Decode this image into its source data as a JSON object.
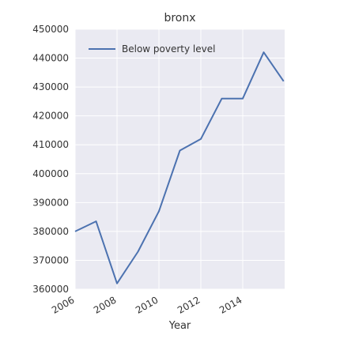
{
  "chart_data": {
    "type": "line",
    "title": "bronx",
    "xlabel": "Year",
    "ylabel": "",
    "x": [
      2006,
      2007,
      2008,
      2009,
      2010,
      2011,
      2012,
      2013,
      2014,
      2015
    ],
    "xlim": [
      2006,
      2015
    ],
    "ylim": [
      360000,
      450000
    ],
    "xticks": [
      2006,
      2008,
      2010,
      2012,
      2014
    ],
    "xtick_labels": [
      "2006",
      "2008",
      "2010",
      "2012",
      "2014"
    ],
    "yticks": [
      360000,
      370000,
      380000,
      390000,
      400000,
      410000,
      420000,
      430000,
      440000,
      450000
    ],
    "ytick_labels": [
      "360000",
      "370000",
      "380000",
      "390000",
      "400000",
      "410000",
      "420000",
      "430000",
      "440000",
      "450000"
    ],
    "series": [
      {
        "name": "Below poverty level",
        "color": "#4c72b0",
        "values": [
          380000,
          383500,
          362000,
          373000,
          387000,
          408000,
          412000,
          426000,
          426000,
          442000
        ]
      }
    ],
    "extra_point": {
      "x": 2015.95,
      "y": 432000
    },
    "legend_position": "top-left",
    "grid": true,
    "style": "seaborn-darkgrid",
    "plot_background": "#eaeaf2",
    "grid_color": "#ffffff"
  }
}
